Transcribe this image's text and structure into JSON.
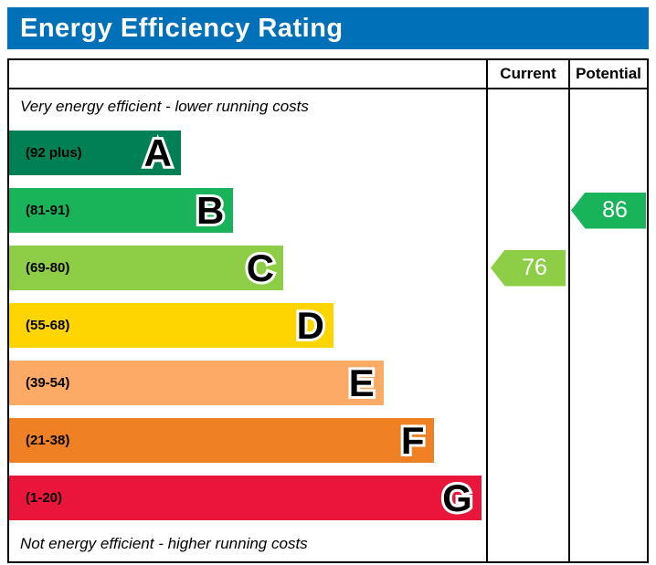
{
  "header": {
    "title": "Energy Efficiency Rating",
    "bg_color": "#0071b9"
  },
  "columns": {
    "current": "Current",
    "potential": "Potential"
  },
  "notes": {
    "top": "Very energy efficient - lower running costs",
    "bottom": "Not energy efficient - higher running costs"
  },
  "bands": [
    {
      "letter": "A",
      "range": "(92 plus)",
      "color": "#008054",
      "width_pct": 36
    },
    {
      "letter": "B",
      "range": "(81-91)",
      "color": "#19b459",
      "width_pct": 47
    },
    {
      "letter": "C",
      "range": "(69-80)",
      "color": "#8dce46",
      "width_pct": 57.5
    },
    {
      "letter": "D",
      "range": "(55-68)",
      "color": "#ffd500",
      "width_pct": 68
    },
    {
      "letter": "E",
      "range": "(39-54)",
      "color": "#fcaa65",
      "width_pct": 78.5
    },
    {
      "letter": "F",
      "range": "(21-38)",
      "color": "#ef8023",
      "width_pct": 89
    },
    {
      "letter": "G",
      "range": "(1-20)",
      "color": "#e9153b",
      "width_pct": 99
    }
  ],
  "current": {
    "value": "76",
    "color": "#8dce46",
    "band": "C"
  },
  "potential": {
    "value": "86",
    "color": "#19b459",
    "band": "B"
  },
  "chart_data": {
    "type": "bar",
    "title": "Energy Efficiency Rating",
    "categories": [
      "A",
      "B",
      "C",
      "D",
      "E",
      "F",
      "G"
    ],
    "band_ranges": [
      "92 plus",
      "81-91",
      "69-80",
      "55-68",
      "39-54",
      "21-38",
      "1-20"
    ],
    "band_colors": [
      "#008054",
      "#19b459",
      "#8dce46",
      "#ffd500",
      "#fcaa65",
      "#ef8023",
      "#e9153b"
    ],
    "bar_width_pct": [
      36,
      47,
      57.5,
      68,
      78.5,
      89,
      99
    ],
    "series": [
      {
        "name": "Current",
        "value": 76,
        "band": "C"
      },
      {
        "name": "Potential",
        "value": 86,
        "band": "B"
      }
    ],
    "top_annotation": "Very energy efficient - lower running costs",
    "bottom_annotation": "Not energy efficient - higher running costs",
    "value_range": [
      1,
      100
    ]
  }
}
